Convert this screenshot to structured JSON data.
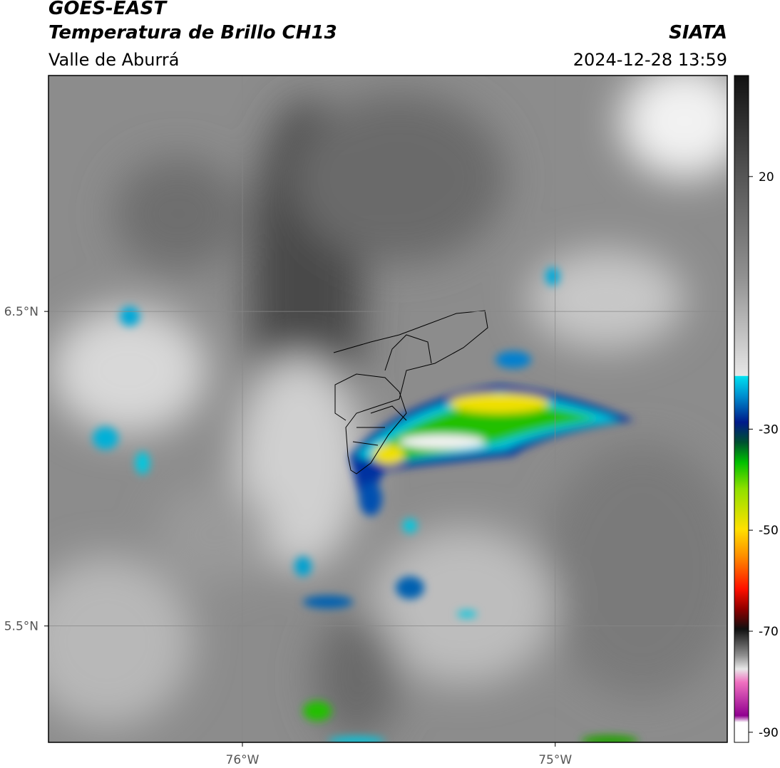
{
  "header": {
    "title": "GOES-EAST",
    "subtitle": "Temperatura de Brillo CH13",
    "region": "Valle de Aburrá",
    "agency": "SIATA",
    "timestamp": "2024-12-28 13:59"
  },
  "map": {
    "lonlim": [
      -76.62,
      -74.45
    ],
    "latlim": [
      5.13,
      7.25
    ],
    "lonticks": [
      {
        "value": -76,
        "label": "76°W"
      },
      {
        "value": -75,
        "label": "75°W"
      }
    ],
    "latticks": [
      {
        "value": 6.5,
        "label": "6.5°N"
      },
      {
        "value": 5.5,
        "label": "5.5°N"
      }
    ],
    "grid": true
  },
  "colorbar": {
    "lim": [
      -92,
      40
    ],
    "ticks": [
      20,
      -30,
      -50,
      -70,
      -90
    ]
  }
}
